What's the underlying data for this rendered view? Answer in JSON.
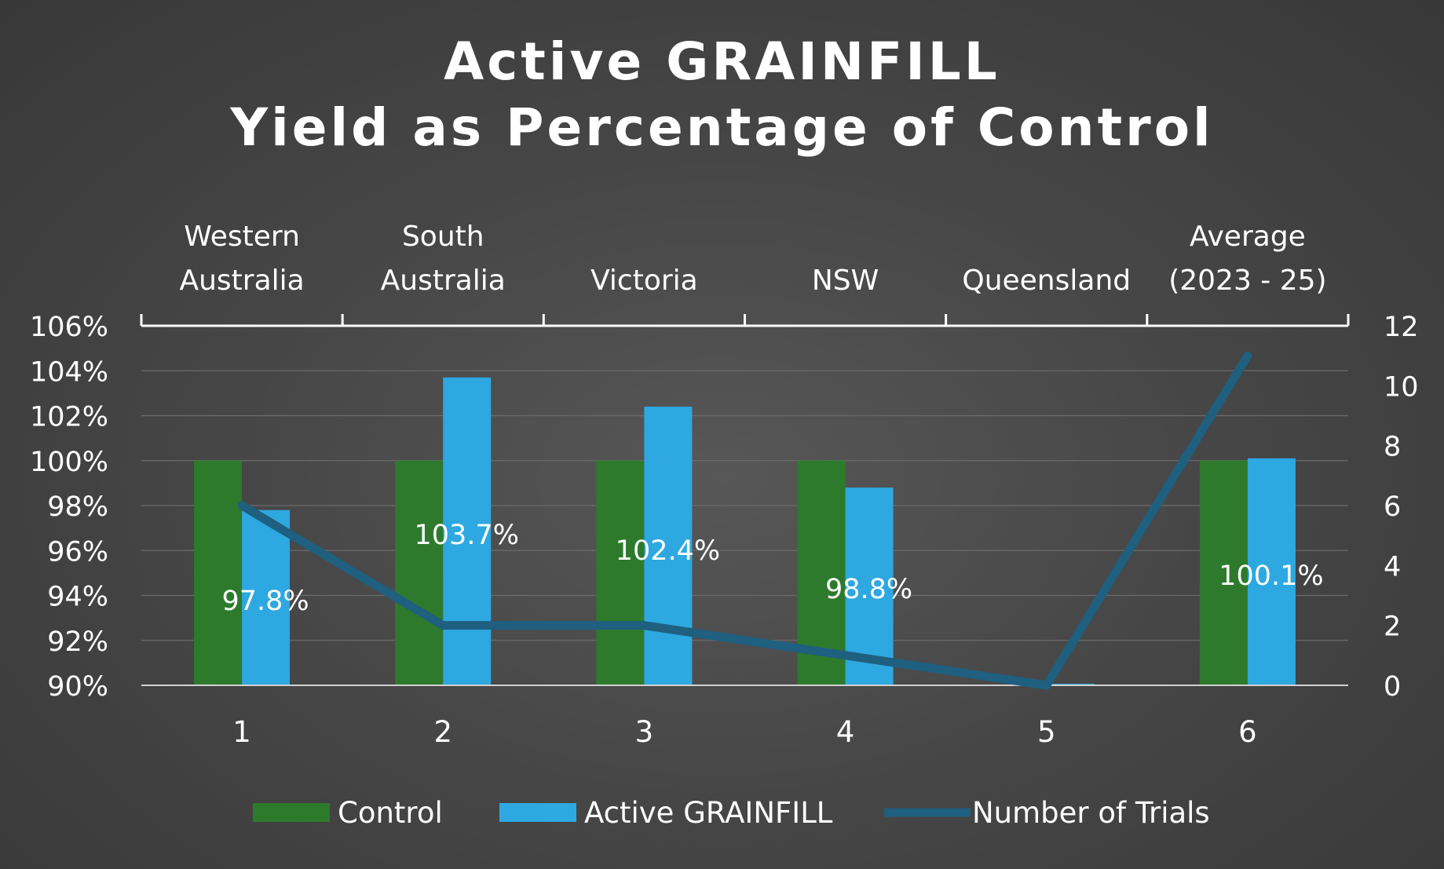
{
  "chart_data": {
    "type": "bar",
    "title": [
      "Active GRAINFILL",
      "Yield as Percentage of Control"
    ],
    "categories": [
      "1",
      "2",
      "3",
      "4",
      "5",
      "6"
    ],
    "category_labels": [
      [
        "Western",
        "Australia"
      ],
      [
        "South",
        "Australia"
      ],
      [
        "Victoria"
      ],
      [
        "NSW"
      ],
      [
        "Queensland"
      ],
      [
        "Average",
        "(2023 - 25)"
      ]
    ],
    "series": [
      {
        "name": "Control",
        "type": "bar",
        "axis": "left",
        "color": "#2d7a2d",
        "values": [
          100,
          100,
          100,
          100,
          90,
          100
        ]
      },
      {
        "name": "Active GRAINFILL",
        "type": "bar",
        "axis": "left",
        "color": "#2ea8e0",
        "values": [
          97.8,
          103.7,
          102.4,
          98.8,
          90,
          100.1
        ],
        "data_labels": [
          "97.8%",
          "103.7%",
          "102.4%",
          "98.8%",
          "",
          "100.1%"
        ]
      },
      {
        "name": "Number of Trials",
        "type": "line",
        "axis": "right",
        "color": "#1f5f7f",
        "values": [
          6,
          2,
          2,
          1,
          0,
          11
        ]
      }
    ],
    "y_left": {
      "min": 90,
      "max": 106,
      "step": 2,
      "tick_labels": [
        "90%",
        "92%",
        "94%",
        "96%",
        "98%",
        "100%",
        "102%",
        "104%",
        "106%"
      ]
    },
    "y_right": {
      "min": 0,
      "max": 12,
      "step": 2,
      "tick_labels": [
        "0",
        "2",
        "4",
        "6",
        "8",
        "10",
        "12"
      ]
    },
    "grid": true,
    "legend_position": "bottom"
  }
}
